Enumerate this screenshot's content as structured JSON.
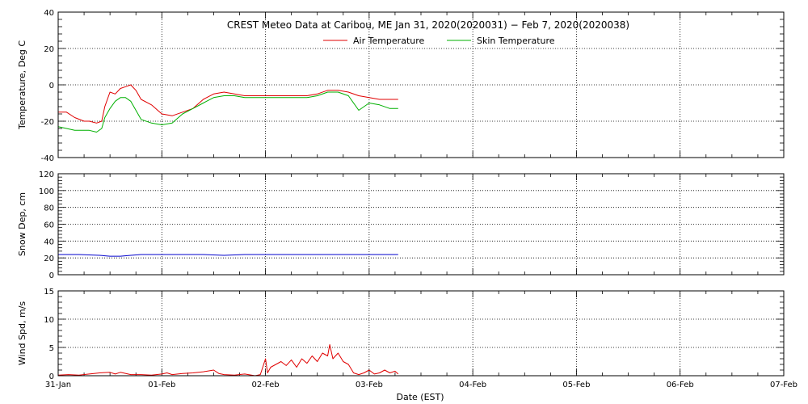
{
  "chart_data": {
    "type": "line",
    "title": "CREST Meteo Data at Caribou, ME   Jan 31, 2020(2020031) − Feb  7, 2020(2020038)",
    "xlabel": "Date (EST)",
    "x_tick_labels": [
      "31-Jan",
      "01-Feb",
      "02-Feb",
      "03-Feb",
      "04-Feb",
      "05-Feb",
      "06-Feb",
      "07-Feb"
    ],
    "x_unit": "days since 31-Jan 00:00 EST",
    "xlim": [
      0,
      7
    ],
    "grid": true,
    "legend": {
      "location": "top-center",
      "entries": [
        "Air Temperature",
        "Skin Temperature"
      ]
    },
    "panels": [
      {
        "ylabel": "Temperature, Deg C",
        "ylim": [
          -40,
          40
        ],
        "yticks": [
          -40,
          -20,
          0,
          20,
          40
        ],
        "series": [
          {
            "name": "Air Temperature",
            "color": "#e00000",
            "x": [
              0.0,
              0.08,
              0.16,
              0.25,
              0.3,
              0.37,
              0.42,
              0.45,
              0.5,
              0.55,
              0.6,
              0.65,
              0.7,
              0.75,
              0.8,
              0.9,
              1.0,
              1.1,
              1.2,
              1.3,
              1.4,
              1.5,
              1.6,
              1.7,
              1.8,
              2.0,
              2.2,
              2.4,
              2.5,
              2.6,
              2.7,
              2.8,
              2.9,
              3.0,
              3.1,
              3.2,
              3.28
            ],
            "values": [
              -15,
              -15,
              -18,
              -20,
              -20,
              -21,
              -20,
              -12,
              -4,
              -5,
              -2,
              -1,
              0,
              -3,
              -8,
              -11,
              -16,
              -17,
              -15,
              -13,
              -8,
              -5,
              -4,
              -5,
              -6,
              -6,
              -6,
              -6,
              -5,
              -3,
              -3,
              -4,
              -6,
              -7,
              -8,
              -8,
              -8
            ]
          },
          {
            "name": "Skin Temperature",
            "color": "#00b000",
            "x": [
              0.0,
              0.08,
              0.16,
              0.25,
              0.3,
              0.37,
              0.42,
              0.45,
              0.5,
              0.55,
              0.6,
              0.65,
              0.7,
              0.75,
              0.8,
              0.9,
              1.0,
              1.1,
              1.2,
              1.3,
              1.4,
              1.5,
              1.6,
              1.7,
              1.8,
              2.0,
              2.2,
              2.4,
              2.5,
              2.6,
              2.7,
              2.8,
              2.9,
              3.0,
              3.1,
              3.2,
              3.28
            ],
            "values": [
              -23,
              -24,
              -25,
              -25,
              -25,
              -26,
              -24,
              -18,
              -13,
              -9,
              -7,
              -7,
              -9,
              -14,
              -19,
              -21,
              -22,
              -21,
              -16,
              -13,
              -10,
              -7,
              -6,
              -6,
              -7,
              -7,
              -7,
              -7,
              -6,
              -4,
              -4,
              -6,
              -14,
              -10,
              -11,
              -13,
              -13
            ]
          }
        ]
      },
      {
        "ylabel": "Snow Dep, cm",
        "ylim": [
          0,
          120
        ],
        "yticks": [
          0,
          20,
          40,
          60,
          80,
          100,
          120
        ],
        "series": [
          {
            "name": "Snow Depth",
            "color": "#0000cc",
            "x": [
              0.0,
              0.2,
              0.4,
              0.5,
              0.6,
              0.7,
              0.8,
              0.9,
              1.0,
              1.2,
              1.4,
              1.6,
              1.8,
              2.0,
              2.2,
              2.4,
              2.6,
              2.8,
              3.0,
              3.2,
              3.28
            ],
            "values": [
              24,
              24,
              23,
              22,
              22,
              23,
              24,
              24,
              24,
              24,
              24,
              23,
              24,
              24,
              24,
              24,
              24,
              24,
              24,
              24,
              24
            ]
          }
        ]
      },
      {
        "ylabel": "Wind Spd, m/s",
        "ylim": [
          0,
          15
        ],
        "yticks": [
          0,
          5,
          10,
          15
        ],
        "series": [
          {
            "name": "Wind Speed",
            "color": "#e00000",
            "x": [
              0.0,
              0.1,
              0.2,
              0.3,
              0.4,
              0.5,
              0.55,
              0.6,
              0.7,
              0.8,
              0.9,
              1.0,
              1.05,
              1.1,
              1.2,
              1.3,
              1.4,
              1.5,
              1.55,
              1.6,
              1.7,
              1.8,
              1.9,
              1.95,
              2.0,
              2.02,
              2.05,
              2.1,
              2.15,
              2.2,
              2.25,
              2.3,
              2.35,
              2.4,
              2.45,
              2.5,
              2.55,
              2.6,
              2.62,
              2.65,
              2.7,
              2.75,
              2.8,
              2.85,
              2.9,
              2.95,
              3.0,
              3.05,
              3.1,
              3.15,
              3.2,
              3.25,
              3.28
            ],
            "values": [
              0.1,
              0.2,
              0.1,
              0.3,
              0.5,
              0.6,
              0.3,
              0.6,
              0.2,
              0.2,
              0.1,
              0.3,
              0.5,
              0.2,
              0.4,
              0.5,
              0.7,
              1.0,
              0.4,
              0.2,
              0.1,
              0.3,
              0.0,
              0.2,
              3.0,
              0.5,
              1.5,
              2.0,
              2.5,
              1.8,
              2.8,
              1.5,
              3.0,
              2.2,
              3.5,
              2.5,
              4.0,
              3.5,
              5.5,
              3.0,
              4.0,
              2.5,
              2.0,
              0.5,
              0.2,
              0.5,
              1.0,
              0.3,
              0.5,
              1.0,
              0.5,
              0.8,
              0.3
            ]
          }
        ]
      }
    ]
  }
}
